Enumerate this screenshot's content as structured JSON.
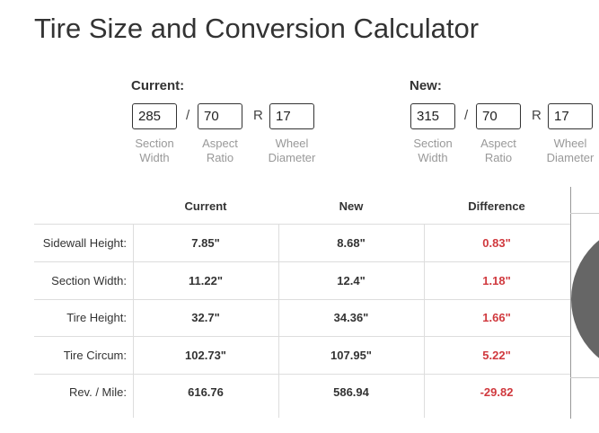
{
  "header": {
    "title": "Tire Size and Conversion Calculator"
  },
  "groups": [
    {
      "label": "Current:",
      "inputs": [
        {
          "value": "285",
          "caption": "Section Width"
        },
        {
          "value": "70",
          "caption": "Aspect Ratio"
        },
        {
          "value": "17",
          "caption": "Wheel Diameter"
        }
      ],
      "separators": [
        "/",
        "R"
      ]
    },
    {
      "label": "New:",
      "inputs": [
        {
          "value": "315",
          "caption": "Section Width"
        },
        {
          "value": "70",
          "caption": "Aspect Ratio"
        },
        {
          "value": "17",
          "caption": "Wheel Diameter"
        }
      ],
      "separators": [
        "/",
        "R"
      ]
    }
  ],
  "table": {
    "columns": [
      "Current",
      "New",
      "Difference"
    ],
    "rows": [
      {
        "label": "Sidewall Height:",
        "cells": [
          "7.85\"",
          "8.68\"",
          "0.83\""
        ]
      },
      {
        "label": "Section Width:",
        "cells": [
          "11.22\"",
          "12.4\"",
          "1.18\""
        ]
      },
      {
        "label": "Tire Height:",
        "cells": [
          "32.7\"",
          "34.36\"",
          "1.66\""
        ]
      },
      {
        "label": "Tire Circum:",
        "cells": [
          "102.73\"",
          "107.95\"",
          "5.22\""
        ]
      },
      {
        "label": "Rev. / Mile:",
        "cells": [
          "616.76",
          "586.94",
          "-29.82"
        ]
      }
    ]
  }
}
